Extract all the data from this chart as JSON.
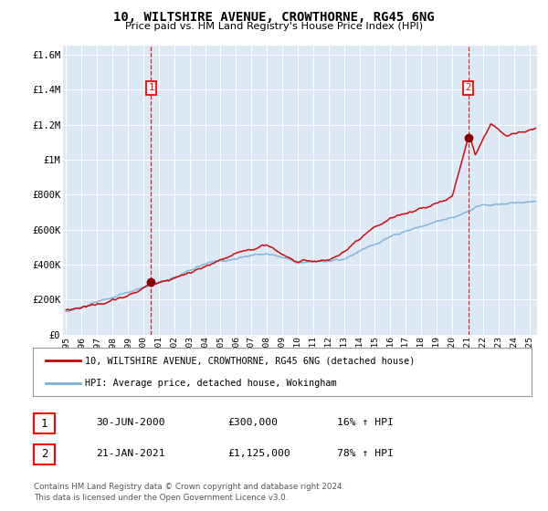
{
  "title": "10, WILTSHIRE AVENUE, CROWTHORNE, RG45 6NG",
  "subtitle": "Price paid vs. HM Land Registry's House Price Index (HPI)",
  "background_color": "#ffffff",
  "plot_bg_color": "#dce9f5",
  "grid_color": "#ffffff",
  "hpi_color": "#7ab0d8",
  "price_color": "#cc0000",
  "marker_color": "#880000",
  "dashed_color": "#cc0000",
  "legend_label_price": "10, WILTSHIRE AVENUE, CROWTHORNE, RG45 6NG (detached house)",
  "legend_label_hpi": "HPI: Average price, detached house, Wokingham",
  "transaction1_x": 2000.5,
  "transaction1_y": 300000,
  "transaction1_label": "1",
  "transaction2_x": 2021.05,
  "transaction2_y": 1125000,
  "transaction2_label": "2",
  "ylim": [
    0,
    1650000
  ],
  "xlim_start": 1994.8,
  "xlim_end": 2025.5,
  "yticks": [
    0,
    200000,
    400000,
    600000,
    800000,
    1000000,
    1200000,
    1400000,
    1600000
  ],
  "ytick_labels": [
    "£0",
    "£200K",
    "£400K",
    "£600K",
    "£800K",
    "£1M",
    "£1.2M",
    "£1.4M",
    "£1.6M"
  ],
  "xtick_years": [
    1995,
    1996,
    1997,
    1998,
    1999,
    2000,
    2001,
    2002,
    2003,
    2004,
    2005,
    2006,
    2007,
    2008,
    2009,
    2010,
    2011,
    2012,
    2013,
    2014,
    2015,
    2016,
    2017,
    2018,
    2019,
    2020,
    2021,
    2022,
    2023,
    2024,
    2025
  ],
  "table_data": [
    {
      "num": "1",
      "date": "30-JUN-2000",
      "price": "£300,000",
      "hpi": "16% ↑ HPI"
    },
    {
      "num": "2",
      "date": "21-JAN-2021",
      "price": "£1,125,000",
      "hpi": "78% ↑ HPI"
    }
  ],
  "footer": "Contains HM Land Registry data © Crown copyright and database right 2024.\nThis data is licensed under the Open Government Licence v3.0."
}
